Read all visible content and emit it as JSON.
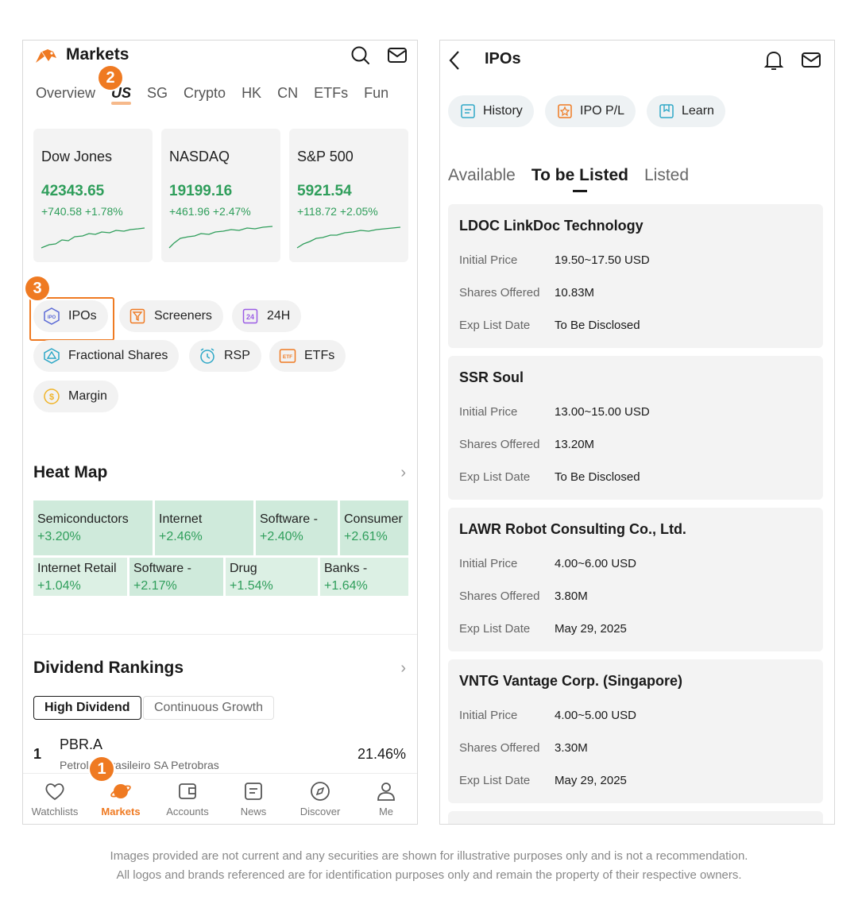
{
  "left": {
    "title": "Markets",
    "tabs": [
      "Overview",
      "US",
      "SG",
      "Crypto",
      "HK",
      "CN",
      "ETFs",
      "Fun"
    ],
    "indices": [
      {
        "name": "Dow Jones",
        "value": "42343.65",
        "change": "+740.58 +1.78%"
      },
      {
        "name": "NASDAQ",
        "value": "19199.16",
        "change": "+461.96 +2.47%"
      },
      {
        "name": "S&P 500",
        "value": "5921.54",
        "change": "+118.72 +2.05%"
      }
    ],
    "shortcuts": {
      "ipos": "IPOs",
      "screeners": "Screeners",
      "h24": "24H",
      "fractional": "Fractional Shares",
      "rsp": "RSP",
      "etfs": "ETFs",
      "margin": "Margin",
      "h24_icon_text": "24",
      "ipo_icon_text": "IPO",
      "etf_icon_text": "ETF"
    },
    "heat_map": {
      "title": "Heat Map",
      "row1": [
        {
          "name": "Semiconductors",
          "pct": "+3.20%"
        },
        {
          "name": "Internet",
          "pct": "+2.46%"
        },
        {
          "name": "Software -",
          "pct": "+2.40%"
        },
        {
          "name": "Consumer",
          "pct": "+2.61%"
        }
      ],
      "row2": [
        {
          "name": "Internet Retail",
          "pct": "+1.04%"
        },
        {
          "name": "Software -",
          "pct": "+2.17%"
        },
        {
          "name": "Drug",
          "pct": "+1.54%"
        },
        {
          "name": "Banks -",
          "pct": "+1.64%"
        }
      ]
    },
    "dividend": {
      "title": "Dividend Rankings",
      "filters": [
        "High Dividend",
        "Continuous Growth"
      ],
      "row": {
        "rank": "1",
        "code": "PBR.A",
        "name": "Petroleo Brasileiro SA Petrobras",
        "pct": "21.46%"
      }
    },
    "nav": [
      "Watchlists",
      "Markets",
      "Accounts",
      "News",
      "Discover",
      "Me"
    ],
    "badges": [
      "1",
      "2",
      "3"
    ]
  },
  "right": {
    "title": "IPOs",
    "chips": [
      "History",
      "IPO P/L",
      "Learn"
    ],
    "tabs": [
      "Available",
      "To be Listed",
      "Listed"
    ],
    "labels": {
      "price": "Initial Price",
      "shares": "Shares Offered",
      "date": "Exp List Date"
    },
    "ipos": [
      {
        "name": "LDOC LinkDoc Technology",
        "price": "19.50~17.50 USD",
        "shares": "10.83M",
        "date": "To Be Disclosed"
      },
      {
        "name": "SSR Soul",
        "price": "13.00~15.00 USD",
        "shares": "13.20M",
        "date": "To Be Disclosed"
      },
      {
        "name": "LAWR Robot Consulting Co., Ltd.",
        "price": "4.00~6.00 USD",
        "shares": "3.80M",
        "date": "May 29, 2025"
      },
      {
        "name": "VNTG Vantage Corp. (Singapore)",
        "price": "4.00~5.00 USD",
        "shares": "3.30M",
        "date": "May 29, 2025"
      }
    ]
  },
  "disclaimer": [
    "Images provided are not current and any securities are shown for illustrative purposes only and is not a recommendation.",
    "All logos and brands referenced are for identification purposes only and remain the property of their respective owners."
  ],
  "colors": {
    "accent": "#ef7a22",
    "up": "#2f9e5b",
    "heat": "#cfeadb"
  }
}
